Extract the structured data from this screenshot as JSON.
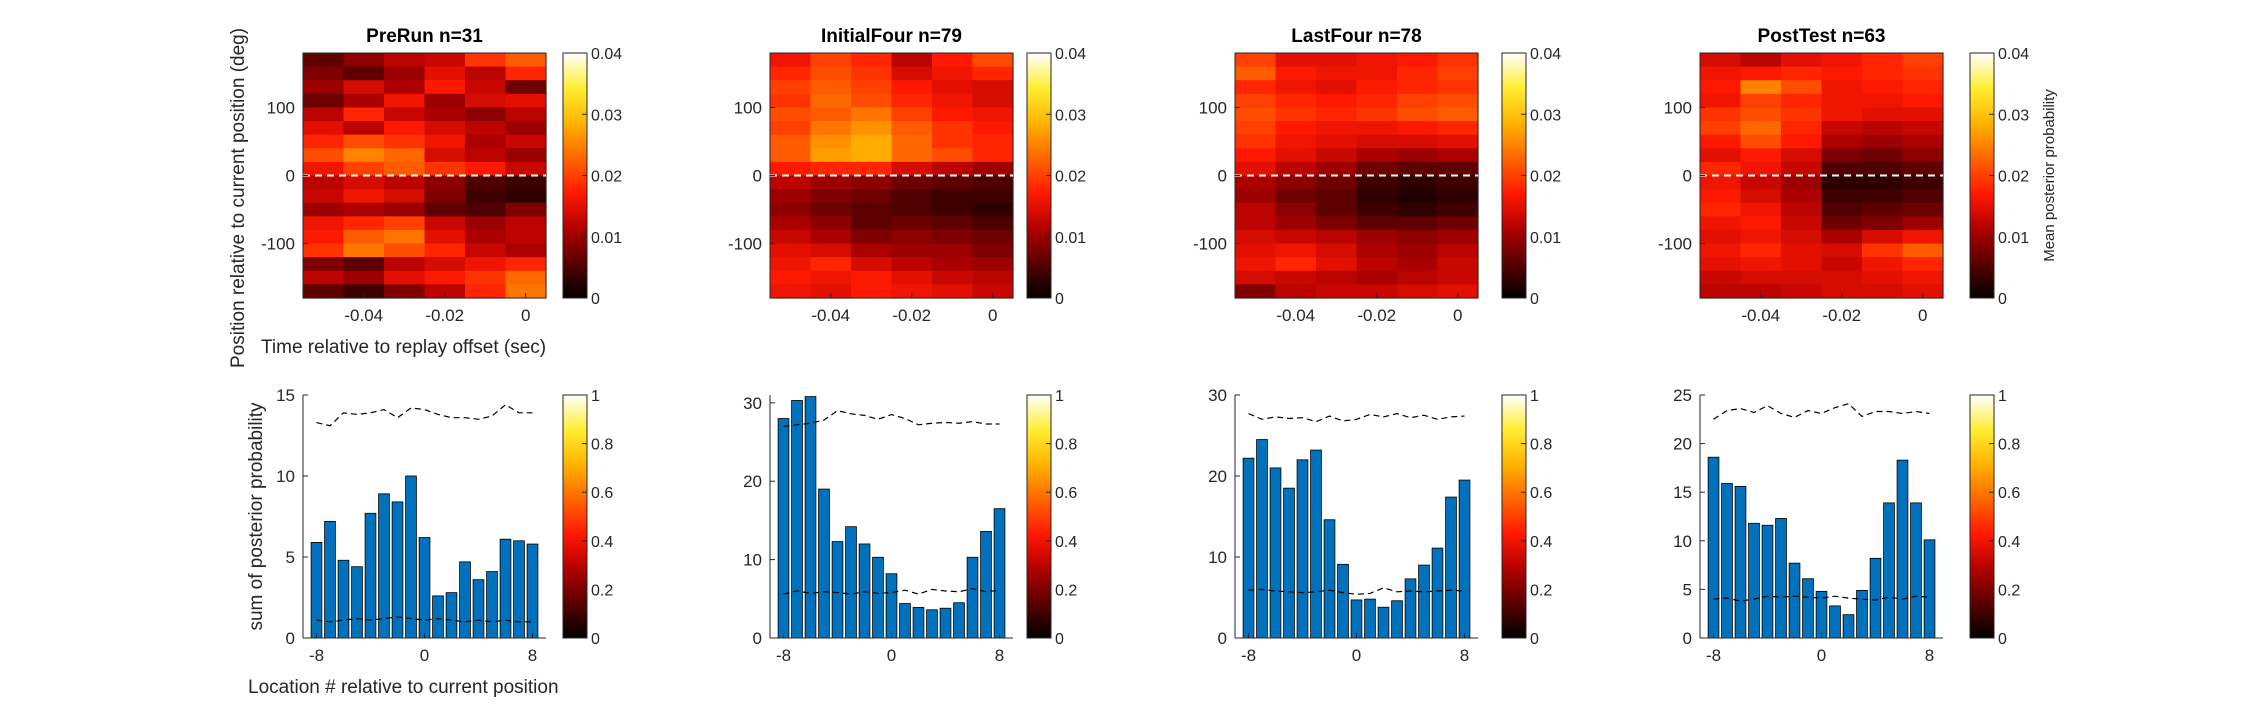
{
  "figure": {
    "colormap": [
      "#000000",
      "#5a0000",
      "#b30000",
      "#ff1a00",
      "#ff6600",
      "#ffb300",
      "#ffee33",
      "#ffffff"
    ],
    "bar_color": "#0072bd",
    "bar_edge": "#000000",
    "dashed_line_color": "#000000",
    "zero_line_color": "#ffffff"
  },
  "chart_data": [
    {
      "type": "heatmap",
      "title": "PreRun n=31",
      "xlabel": "Time relative to replay offset (sec)",
      "ylabel": "Position relative to current position (deg)",
      "xlim": [
        -0.055,
        0.005
      ],
      "ylim": [
        -180,
        180
      ],
      "xticks": [
        -0.04,
        -0.02,
        0
      ],
      "yticks": [
        -100,
        0,
        100
      ],
      "xtick_labels": [
        "-0.04",
        "-0.02",
        "0"
      ],
      "ytick_labels": [
        "-100",
        "0",
        "100"
      ],
      "dashed_line_y": 0,
      "colorbar": {
        "range": [
          0,
          0.04
        ],
        "tick_labels": [
          "0",
          "0.01",
          "0.02",
          "0.03",
          "0.04"
        ]
      },
      "z": [
        [
          0.006,
          0.009,
          0.012,
          0.013,
          0.019,
          0.022
        ],
        [
          0.008,
          0.006,
          0.01,
          0.015,
          0.012,
          0.018
        ],
        [
          0.01,
          0.014,
          0.011,
          0.017,
          0.013,
          0.007
        ],
        [
          0.007,
          0.011,
          0.016,
          0.01,
          0.014,
          0.015
        ],
        [
          0.012,
          0.018,
          0.013,
          0.011,
          0.009,
          0.012
        ],
        [
          0.015,
          0.012,
          0.017,
          0.014,
          0.012,
          0.01
        ],
        [
          0.018,
          0.021,
          0.019,
          0.016,
          0.011,
          0.013
        ],
        [
          0.021,
          0.025,
          0.023,
          0.014,
          0.012,
          0.01
        ],
        [
          0.016,
          0.02,
          0.022,
          0.019,
          0.017,
          0.013
        ],
        [
          0.012,
          0.014,
          0.012,
          0.009,
          0.005,
          0.004
        ],
        [
          0.013,
          0.016,
          0.014,
          0.008,
          0.004,
          0.003
        ],
        [
          0.01,
          0.011,
          0.01,
          0.006,
          0.005,
          0.008
        ],
        [
          0.016,
          0.018,
          0.02,
          0.013,
          0.01,
          0.012
        ],
        [
          0.017,
          0.022,
          0.024,
          0.015,
          0.011,
          0.012
        ],
        [
          0.019,
          0.024,
          0.021,
          0.018,
          0.013,
          0.011
        ],
        [
          0.008,
          0.006,
          0.012,
          0.014,
          0.016,
          0.018
        ],
        [
          0.012,
          0.01,
          0.015,
          0.017,
          0.019,
          0.023
        ],
        [
          0.006,
          0.004,
          0.008,
          0.012,
          0.018,
          0.024
        ]
      ]
    },
    {
      "type": "heatmap",
      "title": "InitialFour n=79",
      "xlabel": "",
      "ylabel": "",
      "xlim": [
        -0.055,
        0.005
      ],
      "ylim": [
        -180,
        180
      ],
      "xticks": [
        -0.04,
        -0.02,
        0
      ],
      "yticks": [
        -100,
        0,
        100
      ],
      "xtick_labels": [
        "-0.04",
        "-0.02",
        "0"
      ],
      "ytick_labels": [
        "-100",
        "0",
        "100"
      ],
      "dashed_line_y": 0,
      "colorbar": {
        "range": [
          0,
          0.04
        ],
        "tick_labels": [
          "0",
          "0.01",
          "0.02",
          "0.03",
          "0.04"
        ]
      },
      "z": [
        [
          0.016,
          0.02,
          0.018,
          0.012,
          0.017,
          0.021
        ],
        [
          0.018,
          0.021,
          0.019,
          0.014,
          0.016,
          0.018
        ],
        [
          0.02,
          0.022,
          0.02,
          0.017,
          0.015,
          0.014
        ],
        [
          0.019,
          0.023,
          0.021,
          0.018,
          0.016,
          0.014
        ],
        [
          0.021,
          0.022,
          0.024,
          0.02,
          0.017,
          0.016
        ],
        [
          0.02,
          0.024,
          0.026,
          0.022,
          0.019,
          0.017
        ],
        [
          0.022,
          0.026,
          0.028,
          0.023,
          0.019,
          0.018
        ],
        [
          0.022,
          0.027,
          0.028,
          0.023,
          0.021,
          0.018
        ],
        [
          0.017,
          0.018,
          0.018,
          0.014,
          0.012,
          0.01
        ],
        [
          0.012,
          0.01,
          0.009,
          0.007,
          0.006,
          0.005
        ],
        [
          0.01,
          0.008,
          0.007,
          0.005,
          0.004,
          0.004
        ],
        [
          0.009,
          0.007,
          0.006,
          0.005,
          0.004,
          0.003
        ],
        [
          0.011,
          0.009,
          0.006,
          0.007,
          0.006,
          0.005
        ],
        [
          0.013,
          0.011,
          0.008,
          0.009,
          0.008,
          0.007
        ],
        [
          0.015,
          0.014,
          0.011,
          0.01,
          0.01,
          0.008
        ],
        [
          0.016,
          0.018,
          0.014,
          0.012,
          0.011,
          0.01
        ],
        [
          0.017,
          0.016,
          0.017,
          0.015,
          0.013,
          0.012
        ],
        [
          0.016,
          0.015,
          0.017,
          0.016,
          0.015,
          0.013
        ]
      ]
    },
    {
      "type": "heatmap",
      "title": "LastFour n=78",
      "xlabel": "",
      "ylabel": "",
      "xlim": [
        -0.055,
        0.005
      ],
      "ylim": [
        -180,
        180
      ],
      "xticks": [
        -0.04,
        -0.02,
        0
      ],
      "yticks": [
        -100,
        0,
        100
      ],
      "xtick_labels": [
        "-0.04",
        "-0.02",
        "0"
      ],
      "ytick_labels": [
        "-100",
        "0",
        "100"
      ],
      "dashed_line_y": 0,
      "colorbar": {
        "range": [
          0,
          0.04
        ],
        "tick_labels": [
          "0",
          "0.01",
          "0.02",
          "0.03",
          "0.04"
        ]
      },
      "z": [
        [
          0.02,
          0.015,
          0.015,
          0.016,
          0.017,
          0.019
        ],
        [
          0.022,
          0.017,
          0.016,
          0.016,
          0.018,
          0.02
        ],
        [
          0.018,
          0.016,
          0.015,
          0.017,
          0.018,
          0.019
        ],
        [
          0.02,
          0.018,
          0.017,
          0.018,
          0.02,
          0.021
        ],
        [
          0.021,
          0.019,
          0.018,
          0.019,
          0.021,
          0.022
        ],
        [
          0.02,
          0.017,
          0.016,
          0.016,
          0.017,
          0.018
        ],
        [
          0.019,
          0.016,
          0.015,
          0.014,
          0.014,
          0.015
        ],
        [
          0.017,
          0.015,
          0.013,
          0.011,
          0.01,
          0.011
        ],
        [
          0.015,
          0.012,
          0.01,
          0.007,
          0.006,
          0.006
        ],
        [
          0.011,
          0.009,
          0.007,
          0.004,
          0.003,
          0.004
        ],
        [
          0.01,
          0.007,
          0.006,
          0.003,
          0.002,
          0.003
        ],
        [
          0.012,
          0.009,
          0.006,
          0.004,
          0.003,
          0.004
        ],
        [
          0.012,
          0.01,
          0.008,
          0.006,
          0.006,
          0.007
        ],
        [
          0.014,
          0.013,
          0.012,
          0.01,
          0.009,
          0.01
        ],
        [
          0.015,
          0.016,
          0.014,
          0.011,
          0.01,
          0.012
        ],
        [
          0.016,
          0.018,
          0.015,
          0.012,
          0.011,
          0.013
        ],
        [
          0.014,
          0.013,
          0.012,
          0.011,
          0.012,
          0.013
        ],
        [
          0.008,
          0.012,
          0.013,
          0.013,
          0.014,
          0.015
        ]
      ]
    },
    {
      "type": "heatmap",
      "title": "PostTest n=63",
      "xlabel": "",
      "ylabel": "",
      "xlim": [
        -0.055,
        0.005
      ],
      "ylim": [
        -180,
        180
      ],
      "xticks": [
        -0.04,
        -0.02,
        0
      ],
      "yticks": [
        -100,
        0,
        100
      ],
      "xtick_labels": [
        "-0.04",
        "-0.02",
        "0"
      ],
      "ytick_labels": [
        "-100",
        "0",
        "100"
      ],
      "dashed_line_y": 0,
      "colorbar": {
        "range": [
          0,
          0.04
        ],
        "tick_labels": [
          "0",
          "0.01",
          "0.02",
          "0.03",
          "0.04"
        ],
        "label": "Mean posterior probability"
      },
      "z": [
        [
          0.014,
          0.012,
          0.015,
          0.016,
          0.018,
          0.02
        ],
        [
          0.016,
          0.017,
          0.018,
          0.017,
          0.018,
          0.019
        ],
        [
          0.017,
          0.025,
          0.021,
          0.016,
          0.017,
          0.018
        ],
        [
          0.016,
          0.02,
          0.018,
          0.016,
          0.016,
          0.017
        ],
        [
          0.019,
          0.021,
          0.019,
          0.016,
          0.015,
          0.015
        ],
        [
          0.02,
          0.023,
          0.018,
          0.013,
          0.012,
          0.013
        ],
        [
          0.017,
          0.021,
          0.017,
          0.011,
          0.01,
          0.011
        ],
        [
          0.015,
          0.017,
          0.014,
          0.008,
          0.007,
          0.009
        ],
        [
          0.018,
          0.016,
          0.013,
          0.005,
          0.005,
          0.006
        ],
        [
          0.016,
          0.013,
          0.01,
          0.003,
          0.003,
          0.004
        ],
        [
          0.017,
          0.014,
          0.011,
          0.004,
          0.004,
          0.005
        ],
        [
          0.018,
          0.016,
          0.012,
          0.005,
          0.006,
          0.007
        ],
        [
          0.016,
          0.017,
          0.013,
          0.007,
          0.008,
          0.01
        ],
        [
          0.015,
          0.016,
          0.014,
          0.011,
          0.014,
          0.016
        ],
        [
          0.016,
          0.018,
          0.015,
          0.014,
          0.019,
          0.022
        ],
        [
          0.015,
          0.016,
          0.015,
          0.013,
          0.016,
          0.018
        ],
        [
          0.013,
          0.014,
          0.014,
          0.014,
          0.015,
          0.016
        ],
        [
          0.012,
          0.012,
          0.013,
          0.014,
          0.014,
          0.015
        ]
      ]
    },
    {
      "type": "bar",
      "title": "",
      "xlabel": "Location # relative to current position",
      "ylabel": "sum of posterior probability",
      "x": [
        -8,
        -7,
        -6,
        -5,
        -4,
        -3,
        -2,
        -1,
        0,
        1,
        2,
        3,
        4,
        5,
        6,
        7,
        8
      ],
      "values": [
        5.9,
        7.2,
        4.8,
        4.4,
        7.7,
        8.9,
        8.4,
        10.0,
        6.2,
        2.6,
        2.8,
        4.7,
        3.6,
        4.1,
        6.1,
        6.0,
        5.8
      ],
      "xlim": [
        -9,
        9
      ],
      "ylim": [
        0,
        15
      ],
      "xticks": [
        -8,
        0,
        8
      ],
      "yticks": [
        0,
        5,
        10,
        15
      ],
      "xtick_labels": [
        "-8",
        "0",
        "8"
      ],
      "ytick_labels": [
        "0",
        "5",
        "10",
        "15"
      ],
      "upper_dashed": [
        13.3,
        13.1,
        13.9,
        13.8,
        13.9,
        14.1,
        13.6,
        14.2,
        14.1,
        13.8,
        13.6,
        13.6,
        13.5,
        13.7,
        14.4,
        13.9,
        13.9
      ],
      "lower_dashed": [
        1.1,
        1.0,
        1.1,
        1.2,
        1.1,
        1.2,
        1.3,
        1.2,
        1.1,
        1.2,
        1.1,
        1.0,
        1.1,
        1.0,
        1.1,
        1.0,
        1.0
      ],
      "colorbar": {
        "range": [
          0,
          1
        ],
        "tick_labels": [
          "0",
          "0.2",
          "0.4",
          "0.6",
          "0.8",
          "1"
        ]
      }
    },
    {
      "type": "bar",
      "title": "",
      "xlabel": "",
      "ylabel": "",
      "x": [
        -8,
        -7,
        -6,
        -5,
        -4,
        -3,
        -2,
        -1,
        0,
        1,
        2,
        3,
        4,
        5,
        6,
        7,
        8
      ],
      "values": [
        28.0,
        30.3,
        30.8,
        19.0,
        12.3,
        14.2,
        12.0,
        10.3,
        8.2,
        4.4,
        3.9,
        3.6,
        3.8,
        4.5,
        10.3,
        13.6,
        16.5
      ],
      "xlim": [
        -9,
        9
      ],
      "ylim": [
        0,
        31
      ],
      "xticks": [
        -8,
        0,
        8
      ],
      "yticks": [
        0,
        10,
        20,
        30
      ],
      "xtick_labels": [
        "-8",
        "0",
        "8"
      ],
      "ytick_labels": [
        "0",
        "10",
        "20",
        "30"
      ],
      "upper_dashed": [
        27.0,
        27.2,
        27.4,
        27.8,
        29.0,
        28.6,
        28.4,
        27.9,
        28.5,
        28.0,
        27.2,
        27.4,
        27.5,
        27.4,
        27.6,
        27.3,
        27.3
      ],
      "lower_dashed": [
        5.6,
        6.0,
        5.7,
        5.9,
        5.8,
        5.6,
        5.9,
        5.7,
        5.8,
        6.1,
        5.6,
        6.2,
        6.0,
        5.9,
        6.3,
        5.9,
        6.1
      ],
      "colorbar": {
        "range": [
          0,
          1
        ],
        "tick_labels": [
          "0",
          "0.2",
          "0.4",
          "0.6",
          "0.8",
          "1"
        ]
      }
    },
    {
      "type": "bar",
      "title": "",
      "xlabel": "",
      "ylabel": "",
      "x": [
        -8,
        -7,
        -6,
        -5,
        -4,
        -3,
        -2,
        -1,
        0,
        1,
        2,
        3,
        4,
        5,
        6,
        7,
        8
      ],
      "values": [
        22.2,
        24.5,
        21.0,
        18.5,
        22.0,
        23.2,
        14.6,
        9.1,
        4.7,
        4.8,
        3.8,
        4.6,
        7.3,
        9.0,
        11.1,
        17.4,
        19.5
      ],
      "xlim": [
        -9,
        9
      ],
      "ylim": [
        0,
        30
      ],
      "xticks": [
        -8,
        0,
        8
      ],
      "yticks": [
        0,
        10,
        20,
        30
      ],
      "xtick_labels": [
        "-8",
        "0",
        "8"
      ],
      "ytick_labels": [
        "0",
        "10",
        "20",
        "30"
      ],
      "upper_dashed": [
        27.7,
        27.0,
        27.3,
        27.1,
        27.2,
        26.7,
        27.4,
        26.8,
        27.0,
        27.6,
        27.3,
        27.7,
        27.2,
        27.5,
        27.0,
        27.3,
        27.4
      ],
      "lower_dashed": [
        5.9,
        6.0,
        5.8,
        5.7,
        5.6,
        5.7,
        5.9,
        5.6,
        5.4,
        5.5,
        6.2,
        5.7,
        5.8,
        5.7,
        5.8,
        5.9,
        5.8
      ],
      "colorbar": {
        "range": [
          0,
          1
        ],
        "tick_labels": [
          "0",
          "0.2",
          "0.4",
          "0.6",
          "0.8",
          "1"
        ]
      }
    },
    {
      "type": "bar",
      "title": "",
      "xlabel": "",
      "ylabel": "",
      "x": [
        -8,
        -7,
        -6,
        -5,
        -4,
        -3,
        -2,
        -1,
        0,
        1,
        2,
        3,
        4,
        5,
        6,
        7,
        8
      ],
      "values": [
        18.6,
        15.9,
        15.6,
        11.8,
        11.6,
        12.3,
        7.7,
        6.1,
        4.8,
        3.3,
        2.4,
        4.9,
        8.2,
        13.9,
        18.3,
        13.9,
        10.1
      ],
      "xlim": [
        -9,
        9
      ],
      "ylim": [
        0,
        25
      ],
      "xticks": [
        -8,
        0,
        8
      ],
      "yticks": [
        0,
        5,
        10,
        15,
        20,
        25
      ],
      "xtick_labels": [
        "-8",
        "0",
        "8"
      ],
      "ytick_labels": [
        "0",
        "5",
        "10",
        "15",
        "20",
        "25"
      ],
      "upper_dashed": [
        22.5,
        23.4,
        23.6,
        23.2,
        23.9,
        23.1,
        22.7,
        23.4,
        23.1,
        23.7,
        24.1,
        22.8,
        23.3,
        23.3,
        23.1,
        23.3,
        23.1
      ],
      "lower_dashed": [
        4.0,
        4.1,
        3.8,
        4.0,
        4.3,
        4.2,
        4.3,
        4.2,
        4.1,
        4.3,
        4.1,
        4.0,
        3.9,
        4.2,
        4.0,
        4.3,
        4.2
      ],
      "colorbar": {
        "range": [
          0,
          1
        ],
        "tick_labels": [
          "0",
          "0.2",
          "0.4",
          "0.6",
          "0.8",
          "1"
        ]
      }
    }
  ]
}
